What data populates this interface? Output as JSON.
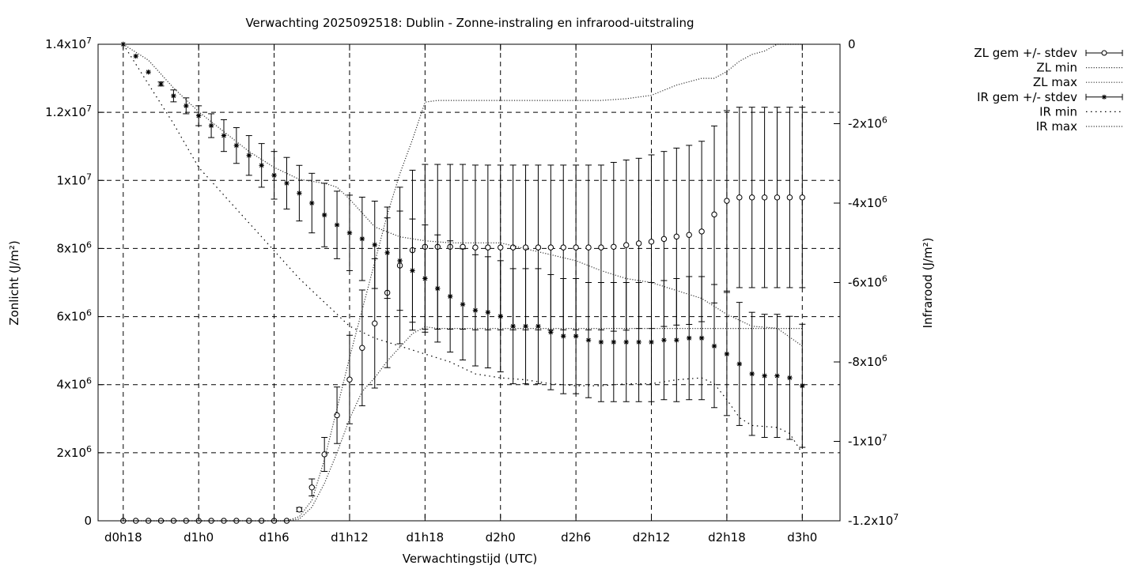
{
  "chart_data": {
    "type": "line",
    "title": "Verwachting 2025092518: Dublin - Zonne-instraling en infrarood-uitstraling",
    "xlabel": "Verwachtingstijd (UTC)",
    "ylabel": "Zonlicht (J/m²)",
    "y2label": "Infrarood (J/m²)",
    "x_tick_labels": [
      "d0h18",
      "d1h0",
      "d1h6",
      "d1h12",
      "d1h18",
      "d2h0",
      "d2h6",
      "d2h12",
      "d2h18",
      "d3h0"
    ],
    "x_units": "hours since d0h0",
    "xlim": [
      16,
      75
    ],
    "ylim": [
      0,
      14000000
    ],
    "y2lim": [
      -12000000,
      0
    ],
    "y_ticks": [
      {
        "v": 0,
        "m": "0",
        "e": ""
      },
      {
        "v": 2000000,
        "m": "2x10",
        "e": "6"
      },
      {
        "v": 4000000,
        "m": "4x10",
        "e": "6"
      },
      {
        "v": 6000000,
        "m": "6x10",
        "e": "6"
      },
      {
        "v": 8000000,
        "m": "8x10",
        "e": "6"
      },
      {
        "v": 10000000,
        "m": "1x10",
        "e": "7"
      },
      {
        "v": 12000000,
        "m": "1.2x10",
        "e": "7"
      },
      {
        "v": 14000000,
        "m": "1.4x10",
        "e": "7"
      }
    ],
    "y2_ticks": [
      {
        "v": 0,
        "m": "0",
        "e": ""
      },
      {
        "v": -2000000,
        "m": "-2x10",
        "e": "6"
      },
      {
        "v": -4000000,
        "m": "-4x10",
        "e": "6"
      },
      {
        "v": -6000000,
        "m": "-6x10",
        "e": "6"
      },
      {
        "v": -8000000,
        "m": "-8x10",
        "e": "6"
      },
      {
        "v": -10000000,
        "m": "-1x10",
        "e": "7"
      },
      {
        "v": -12000000,
        "m": "-1.2x10",
        "e": "7"
      }
    ],
    "grid": true,
    "legend_position": "outside-top-right",
    "legend": [
      "ZL gem +/- stdev",
      "ZL min",
      "ZL max",
      "IR gem +/- stdev",
      "IR min",
      "IR max"
    ],
    "x": [
      18,
      19,
      20,
      21,
      22,
      23,
      24,
      25,
      26,
      27,
      28,
      29,
      30,
      31,
      32,
      33,
      34,
      35,
      36,
      37,
      38,
      39,
      40,
      41,
      42,
      43,
      44,
      45,
      46,
      47,
      48,
      49,
      50,
      51,
      52,
      53,
      54,
      55,
      56,
      57,
      58,
      59,
      60,
      61,
      62,
      63,
      64,
      65,
      66,
      67,
      68,
      69,
      70,
      71,
      72
    ],
    "series": [
      {
        "name": "ZL gem +/- stdev",
        "axis": "y",
        "marker": "circle",
        "values": [
          0,
          0,
          0,
          0,
          0,
          0,
          0,
          0,
          0,
          0,
          0,
          0,
          0,
          0,
          330000,
          980000,
          1950000,
          3100000,
          4150000,
          5080000,
          5800000,
          6700000,
          7500000,
          7950000,
          8050000,
          8050000,
          8050000,
          8050000,
          8030000,
          8030000,
          8030000,
          8030000,
          8030000,
          8030000,
          8030000,
          8030000,
          8030000,
          8030000,
          8030000,
          8050000,
          8100000,
          8150000,
          8200000,
          8280000,
          8350000,
          8400000,
          8500000,
          9000000,
          9400000,
          9500000,
          9500000,
          9500000,
          9500000,
          9500000,
          9500000
        ],
        "stdev": [
          0,
          0,
          0,
          0,
          0,
          0,
          0,
          0,
          0,
          0,
          0,
          0,
          0,
          0,
          60000,
          250000,
          500000,
          830000,
          1300000,
          1700000,
          1900000,
          2200000,
          2300000,
          2350000,
          2420000,
          2420000,
          2420000,
          2420000,
          2420000,
          2420000,
          2420000,
          2420000,
          2420000,
          2420000,
          2420000,
          2420000,
          2420000,
          2420000,
          2420000,
          2480000,
          2500000,
          2500000,
          2550000,
          2570000,
          2600000,
          2630000,
          2650000,
          2600000,
          2650000,
          2650000,
          2650000,
          2650000,
          2650000,
          2650000,
          2650000
        ]
      },
      {
        "name": "ZL min",
        "axis": "y",
        "x": [
          18,
          24,
          30,
          31,
          32,
          33,
          34,
          35,
          36,
          37,
          38,
          39,
          40,
          41,
          42,
          43,
          44,
          45,
          46,
          47,
          48,
          50,
          52,
          54,
          56,
          58,
          60,
          62,
          64,
          65,
          66,
          68,
          70,
          72
        ],
        "values": [
          0,
          0,
          0,
          0,
          50000,
          400000,
          1100000,
          2000000,
          3000000,
          3800000,
          4200000,
          4700000,
          5100000,
          5500000,
          5700000,
          5650000,
          5650000,
          5650000,
          5650000,
          5650000,
          5650000,
          5650000,
          5650000,
          5650000,
          5650000,
          5650000,
          5650000,
          5650000,
          5650000,
          5650000,
          5650000,
          5650000,
          5650000,
          5650000
        ]
      },
      {
        "name": "ZL max",
        "axis": "y",
        "x": [
          18,
          24,
          30,
          31,
          32,
          33,
          34,
          35,
          36,
          37,
          38,
          39,
          40,
          41,
          42,
          43,
          44,
          45,
          46,
          47,
          48,
          50,
          52,
          54,
          56,
          58,
          60,
          62,
          64,
          65,
          66,
          67,
          68,
          69,
          70,
          71,
          72
        ],
        "values": [
          0,
          0,
          0,
          0,
          120000,
          600000,
          1800000,
          3300000,
          4800000,
          6200000,
          7600000,
          9000000,
          10200000,
          11200000,
          12300000,
          12350000,
          12350000,
          12350000,
          12350000,
          12350000,
          12350000,
          12350000,
          12350000,
          12350000,
          12350000,
          12400000,
          12500000,
          12800000,
          13000000,
          13000000,
          13200000,
          13500000,
          13700000,
          13800000,
          14000000,
          14000000,
          14000000
        ]
      },
      {
        "name": "IR gem +/- stdev",
        "axis": "y2",
        "marker": "star",
        "values": [
          0,
          -300000,
          -700000,
          -1000000,
          -1300000,
          -1550000,
          -1800000,
          -2050000,
          -2300000,
          -2550000,
          -2800000,
          -3050000,
          -3300000,
          -3500000,
          -3750000,
          -4000000,
          -4300000,
          -4550000,
          -4750000,
          -4900000,
          -5050000,
          -5250000,
          -5450000,
          -5700000,
          -5900000,
          -6150000,
          -6350000,
          -6550000,
          -6700000,
          -6750000,
          -6850000,
          -7100000,
          -7100000,
          -7100000,
          -7250000,
          -7350000,
          -7350000,
          -7450000,
          -7500000,
          -7500000,
          -7500000,
          -7500000,
          -7500000,
          -7450000,
          -7450000,
          -7400000,
          -7400000,
          -7600000,
          -7800000,
          -8050000,
          -8300000,
          -8350000,
          -8350000,
          -8400000,
          -8600000
        ],
        "stdev": [
          0,
          0,
          0,
          50000,
          150000,
          200000,
          250000,
          300000,
          400000,
          450000,
          500000,
          550000,
          600000,
          650000,
          700000,
          750000,
          800000,
          850000,
          950000,
          1050000,
          1100000,
          1150000,
          1250000,
          1300000,
          1350000,
          1350000,
          1400000,
          1400000,
          1400000,
          1400000,
          1400000,
          1450000,
          1450000,
          1450000,
          1450000,
          1450000,
          1450000,
          1450000,
          1500000,
          1500000,
          1500000,
          1500000,
          1500000,
          1500000,
          1550000,
          1550000,
          1550000,
          1550000,
          1550000,
          1550000,
          1550000,
          1550000,
          1550000,
          1550000,
          1550000
        ]
      },
      {
        "name": "IR min",
        "axis": "y2",
        "x": [
          18,
          20,
          22,
          24,
          26,
          28,
          30,
          32,
          34,
          36,
          38,
          40,
          42,
          44,
          46,
          48,
          50,
          52,
          54,
          56,
          58,
          60,
          62,
          64,
          65,
          66,
          67,
          68,
          70,
          71,
          72
        ],
        "values": [
          0,
          -1000000,
          -2000000,
          -3100000,
          -3800000,
          -4500000,
          -5200000,
          -5900000,
          -6500000,
          -7100000,
          -7400000,
          -7600000,
          -7800000,
          -8000000,
          -8300000,
          -8400000,
          -8450000,
          -8550000,
          -8600000,
          -8600000,
          -8550000,
          -8550000,
          -8450000,
          -8400000,
          -8550000,
          -8950000,
          -9400000,
          -9600000,
          -9650000,
          -9800000,
          -10300000
        ]
      },
      {
        "name": "IR max",
        "axis": "y2",
        "x": [
          18,
          20,
          22,
          24,
          26,
          28,
          30,
          32,
          34,
          35,
          36,
          38,
          40,
          42,
          44,
          46,
          48,
          50,
          52,
          54,
          56,
          58,
          60,
          62,
          64,
          66,
          68,
          70,
          72
        ],
        "values": [
          0,
          -400000,
          -1100000,
          -1700000,
          -2200000,
          -2700000,
          -3100000,
          -3400000,
          -3500000,
          -3600000,
          -3900000,
          -4600000,
          -4850000,
          -4950000,
          -5000000,
          -5000000,
          -5000000,
          -5150000,
          -5300000,
          -5450000,
          -5700000,
          -5900000,
          -6000000,
          -6200000,
          -6400000,
          -6800000,
          -7100000,
          -7150000,
          -7600000
        ]
      }
    ]
  }
}
